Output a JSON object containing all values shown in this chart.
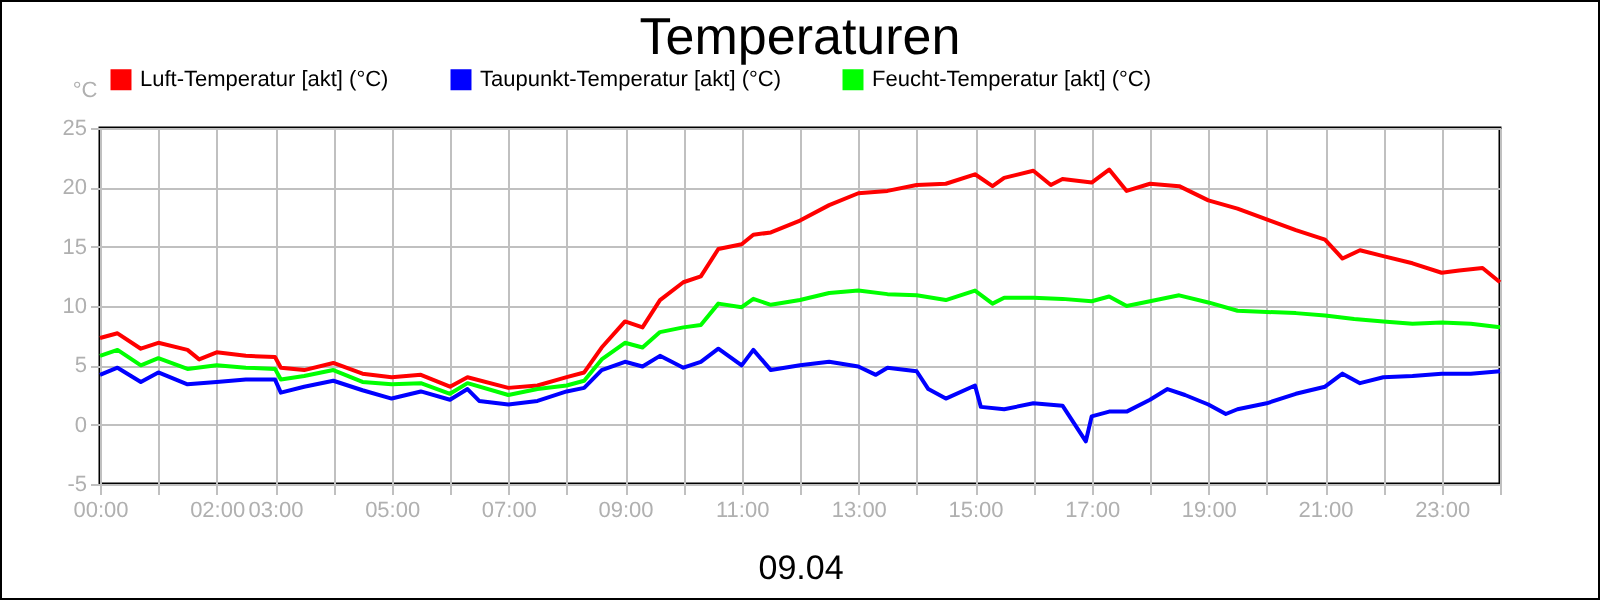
{
  "chart_data": {
    "type": "line",
    "title": "Temperaturen",
    "xlabel": "09.04",
    "ylabel": "°C",
    "xlim": [
      0,
      24
    ],
    "ylim": [
      -5,
      25
    ],
    "xticks": [
      {
        "value": 0,
        "label": "00:00"
      },
      {
        "value": 1,
        "label": null
      },
      {
        "value": 2,
        "label": "02:00"
      },
      {
        "value": 3,
        "label": "03:00"
      },
      {
        "value": 4,
        "label": null
      },
      {
        "value": 5,
        "label": "05:00"
      },
      {
        "value": 6,
        "label": null
      },
      {
        "value": 7,
        "label": "07:00"
      },
      {
        "value": 8,
        "label": null
      },
      {
        "value": 9,
        "label": "09:00"
      },
      {
        "value": 10,
        "label": null
      },
      {
        "value": 11,
        "label": "11:00"
      },
      {
        "value": 12,
        "label": null
      },
      {
        "value": 13,
        "label": "13:00"
      },
      {
        "value": 14,
        "label": null
      },
      {
        "value": 15,
        "label": "15:00"
      },
      {
        "value": 16,
        "label": null
      },
      {
        "value": 17,
        "label": "17:00"
      },
      {
        "value": 18,
        "label": null
      },
      {
        "value": 19,
        "label": "19:00"
      },
      {
        "value": 20,
        "label": null
      },
      {
        "value": 21,
        "label": "21:00"
      },
      {
        "value": 22,
        "label": null
      },
      {
        "value": 23,
        "label": "23:00"
      },
      {
        "value": 24,
        "label": null
      }
    ],
    "yticks": [
      -5,
      0,
      5,
      10,
      15,
      20,
      25
    ],
    "grid": true,
    "legend": "top left",
    "marker": "none",
    "line_style": "solid",
    "series": [
      {
        "name": "Luft-Temperatur [akt] (°C)",
        "color": "#ff0000",
        "x": [
          0,
          0.3,
          0.7,
          1,
          1.5,
          1.7,
          2,
          2.5,
          3,
          3.1,
          3.5,
          4,
          4.5,
          5,
          5.5,
          6,
          6.3,
          7,
          7.5,
          8,
          8.3,
          8.6,
          9,
          9.3,
          9.6,
          10,
          10.3,
          10.6,
          11,
          11.2,
          11.5,
          12,
          12.5,
          13,
          13.5,
          14,
          14.5,
          15,
          15.3,
          15.5,
          16,
          16.3,
          16.5,
          17,
          17.3,
          17.6,
          18,
          18.5,
          19,
          19.5,
          20,
          20.5,
          21,
          21.3,
          21.6,
          22,
          22.5,
          23,
          23.3,
          23.7,
          24
        ],
        "values": [
          7.3,
          7.7,
          6.4,
          6.9,
          6.3,
          5.5,
          6.1,
          5.8,
          5.7,
          4.8,
          4.6,
          5.2,
          4.3,
          4.0,
          4.2,
          3.2,
          4.0,
          3.1,
          3.3,
          4.0,
          4.4,
          6.5,
          8.7,
          8.2,
          10.5,
          12,
          12.5,
          14.8,
          15.2,
          16,
          16.2,
          17.2,
          18.5,
          19.5,
          19.7,
          20.2,
          20.3,
          21.1,
          20.1,
          20.8,
          21.4,
          20.2,
          20.7,
          20.4,
          21.5,
          19.7,
          20.3,
          20.1,
          18.9,
          18.2,
          17.3,
          16.4,
          15.6,
          14,
          14.7,
          14.2,
          13.6,
          12.8,
          13,
          13.2,
          12
        ]
      },
      {
        "name": "Taupunkt-Temperatur [akt] (°C)",
        "color": "#0000ff",
        "x": [
          0,
          0.3,
          0.7,
          1,
          1.5,
          2,
          2.5,
          3,
          3.1,
          3.5,
          4,
          4.5,
          5,
          5.5,
          6,
          6.3,
          6.5,
          7,
          7.5,
          8,
          8.3,
          8.6,
          9,
          9.3,
          9.6,
          10,
          10.3,
          10.6,
          11,
          11.2,
          11.5,
          12,
          12.5,
          13,
          13.3,
          13.5,
          14,
          14.2,
          14.5,
          15,
          15.1,
          15.5,
          16,
          16.5,
          16.9,
          17,
          17.3,
          17.6,
          18,
          18.3,
          18.6,
          19,
          19.3,
          19.5,
          20,
          20.5,
          21,
          21.3,
          21.6,
          22,
          22.5,
          23,
          23.5,
          24
        ],
        "values": [
          4.2,
          4.8,
          3.6,
          4.4,
          3.4,
          3.6,
          3.8,
          3.8,
          2.7,
          3.2,
          3.7,
          2.9,
          2.2,
          2.8,
          2.1,
          3.0,
          2.0,
          1.7,
          2.0,
          2.8,
          3.1,
          4.6,
          5.3,
          4.9,
          5.8,
          4.8,
          5.3,
          6.4,
          5.0,
          6.3,
          4.6,
          5.0,
          5.3,
          4.9,
          4.2,
          4.8,
          4.5,
          3.0,
          2.2,
          3.3,
          1.5,
          1.3,
          1.8,
          1.6,
          -1.4,
          0.7,
          1.1,
          1.1,
          2.1,
          3.0,
          2.5,
          1.7,
          0.9,
          1.3,
          1.8,
          2.6,
          3.2,
          4.3,
          3.5,
          4.0,
          4.1,
          4.3,
          4.3,
          4.5
        ]
      },
      {
        "name": "Feucht-Temperatur [akt] (°C)",
        "color": "#00ff00",
        "x": [
          0,
          0.3,
          0.7,
          1,
          1.5,
          2,
          2.5,
          3,
          3.1,
          3.5,
          4,
          4.5,
          5,
          5.5,
          6,
          6.3,
          7,
          7.5,
          8,
          8.3,
          8.6,
          9,
          9.3,
          9.6,
          10,
          10.3,
          10.6,
          11,
          11.2,
          11.5,
          12,
          12.5,
          13,
          13.5,
          14,
          14.5,
          15,
          15.3,
          15.5,
          16,
          16.5,
          17,
          17.3,
          17.6,
          18,
          18.5,
          19,
          19.5,
          20,
          20.5,
          21,
          21.5,
          22,
          22.5,
          23,
          23.5,
          24
        ],
        "values": [
          5.8,
          6.3,
          5.0,
          5.6,
          4.7,
          5.0,
          4.8,
          4.7,
          3.8,
          4.1,
          4.6,
          3.6,
          3.4,
          3.5,
          2.6,
          3.5,
          2.5,
          3.0,
          3.3,
          3.7,
          5.5,
          6.9,
          6.5,
          7.8,
          8.2,
          8.4,
          10.2,
          9.9,
          10.6,
          10.1,
          10.5,
          11.1,
          11.3,
          11.0,
          10.9,
          10.5,
          11.3,
          10.2,
          10.7,
          10.7,
          10.6,
          10.4,
          10.8,
          10.0,
          10.4,
          10.9,
          10.3,
          9.6,
          9.5,
          9.4,
          9.2,
          8.9,
          8.7,
          8.5,
          8.6,
          8.5,
          8.2
        ]
      }
    ]
  }
}
